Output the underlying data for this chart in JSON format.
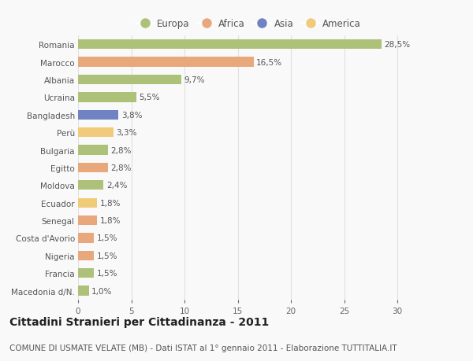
{
  "categories": [
    "Romania",
    "Marocco",
    "Albania",
    "Ucraina",
    "Bangladesh",
    "Perù",
    "Bulgaria",
    "Egitto",
    "Moldova",
    "Ecuador",
    "Senegal",
    "Costa d'Avorio",
    "Nigeria",
    "Francia",
    "Macedonia d/N."
  ],
  "values": [
    28.5,
    16.5,
    9.7,
    5.5,
    3.8,
    3.3,
    2.8,
    2.8,
    2.4,
    1.8,
    1.8,
    1.5,
    1.5,
    1.5,
    1.0
  ],
  "labels": [
    "28,5%",
    "16,5%",
    "9,7%",
    "5,5%",
    "3,8%",
    "3,3%",
    "2,8%",
    "2,8%",
    "2,4%",
    "1,8%",
    "1,8%",
    "1,5%",
    "1,5%",
    "1,5%",
    "1,0%"
  ],
  "continents": [
    "Europa",
    "Africa",
    "Europa",
    "Europa",
    "Asia",
    "America",
    "Europa",
    "Africa",
    "Europa",
    "America",
    "Africa",
    "Africa",
    "Africa",
    "Europa",
    "Europa"
  ],
  "colors": {
    "Europa": "#adc178",
    "Africa": "#e8a87c",
    "Asia": "#6e82c4",
    "America": "#f0cc7a"
  },
  "legend_order": [
    "Europa",
    "Africa",
    "Asia",
    "America"
  ],
  "xlim": [
    0,
    32
  ],
  "xticks": [
    0,
    5,
    10,
    15,
    20,
    25,
    30
  ],
  "title": "Cittadini Stranieri per Cittadinanza - 2011",
  "subtitle": "COMUNE DI USMATE VELATE (MB) - Dati ISTAT al 1° gennaio 2011 - Elaborazione TUTTITALIA.IT",
  "background_color": "#f9f9f9",
  "grid_color": "#e0e0e0",
  "bar_height": 0.55,
  "title_fontsize": 10,
  "subtitle_fontsize": 7.5,
  "label_fontsize": 7.5,
  "tick_fontsize": 7.5,
  "legend_fontsize": 8.5
}
